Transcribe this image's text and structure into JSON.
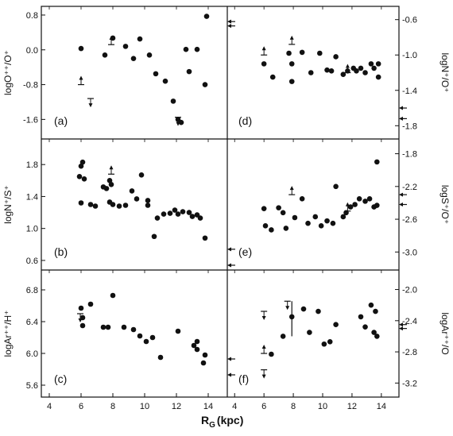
{
  "figure": {
    "x_label": "R",
    "x_label_sub": "G",
    "x_label_unit": "(kpc)",
    "x_ticks": [
      4,
      6,
      8,
      10,
      12,
      14
    ],
    "x_range": [
      3.5,
      15.2
    ],
    "markers": [
      "filled-circle",
      "lower-limit-arrow",
      "upper-limit-arrow",
      "error-bar",
      "solar-value-arrow"
    ]
  },
  "chart_data": [
    {
      "panel": "a",
      "label": "(a)",
      "side": "left",
      "type": "scatter",
      "ylabel": "logO⁺⁺/O⁺",
      "yticks": [
        "0.8",
        "0.0",
        "-0.8",
        "-1.6"
      ],
      "ytick_values": [
        0.8,
        0.0,
        -0.8,
        -1.6
      ],
      "ylim": [
        -2.05,
        1.0
      ],
      "points": [
        [
          6.0,
          0.03
        ],
        [
          7.5,
          -0.12
        ],
        [
          8.0,
          0.27
        ],
        [
          8.8,
          0.08
        ],
        [
          9.3,
          -0.2
        ],
        [
          9.7,
          0.25
        ],
        [
          10.3,
          -0.12
        ],
        [
          10.7,
          -0.55
        ],
        [
          11.3,
          -0.72
        ],
        [
          11.8,
          -1.18
        ],
        [
          12.1,
          -1.6
        ],
        [
          12.3,
          -1.67
        ],
        [
          12.6,
          0.01
        ],
        [
          12.8,
          -0.5
        ],
        [
          13.3,
          0.01
        ],
        [
          13.8,
          -0.8
        ],
        [
          13.9,
          0.77
        ]
      ],
      "lower_limits": [
        [
          6.0,
          -0.8
        ],
        [
          7.9,
          0.12
        ]
      ],
      "upper_limits": [
        [
          6.6,
          -1.12
        ],
        [
          12.1,
          -1.55
        ]
      ],
      "error_bars": [],
      "solar_arrows": [
        0.65,
        0.55
      ]
    },
    {
      "panel": "d",
      "label": "(d)",
      "side": "right",
      "type": "scatter",
      "ylabel": "logN⁺/O⁺",
      "yticks": [
        "-0.6",
        "-1.0",
        "-1.4",
        "-1.8"
      ],
      "ytick_values": [
        -0.6,
        -1.0,
        -1.4,
        -1.8
      ],
      "ylim": [
        -1.95,
        -0.45
      ],
      "points": [
        [
          6.0,
          -1.1
        ],
        [
          6.6,
          -1.25
        ],
        [
          7.7,
          -0.98
        ],
        [
          7.9,
          -1.1
        ],
        [
          7.9,
          -1.3
        ],
        [
          8.6,
          -0.97
        ],
        [
          9.2,
          -1.2
        ],
        [
          9.8,
          -0.98
        ],
        [
          10.3,
          -1.17
        ],
        [
          10.6,
          -1.18
        ],
        [
          10.9,
          -1.02
        ],
        [
          11.4,
          -1.22
        ],
        [
          11.7,
          -1.18
        ],
        [
          12.1,
          -1.15
        ],
        [
          12.3,
          -1.18
        ],
        [
          12.6,
          -1.15
        ],
        [
          12.9,
          -1.2
        ],
        [
          13.3,
          -1.1
        ],
        [
          13.5,
          -1.15
        ],
        [
          13.8,
          -1.25
        ],
        [
          13.8,
          -1.1
        ]
      ],
      "lower_limits": [
        [
          6.0,
          -1.0
        ],
        [
          7.9,
          -0.88
        ],
        [
          11.7,
          -1.2
        ]
      ],
      "upper_limits": [],
      "error_bars": [],
      "solar_arrows": [
        -1.6,
        -1.72
      ]
    },
    {
      "panel": "b",
      "label": "(b)",
      "side": "left",
      "type": "scatter",
      "ylabel": "logN⁺/S⁺",
      "yticks": [
        "1.8",
        "1.4",
        "1.0",
        "0.6"
      ],
      "ytick_values": [
        1.8,
        1.4,
        1.0,
        0.6
      ],
      "ylim": [
        0.48,
        2.12
      ],
      "points": [
        [
          5.9,
          1.65
        ],
        [
          6.0,
          1.78
        ],
        [
          6.0,
          1.32
        ],
        [
          6.1,
          1.83
        ],
        [
          6.2,
          1.62
        ],
        [
          6.6,
          1.3
        ],
        [
          6.9,
          1.28
        ],
        [
          7.4,
          1.52
        ],
        [
          7.6,
          1.5
        ],
        [
          7.8,
          1.6
        ],
        [
          7.9,
          1.55
        ],
        [
          7.8,
          1.33
        ],
        [
          8.0,
          1.3
        ],
        [
          8.4,
          1.28
        ],
        [
          8.8,
          1.29
        ],
        [
          9.2,
          1.47
        ],
        [
          9.5,
          1.37
        ],
        [
          9.8,
          1.67
        ],
        [
          10.2,
          1.35
        ],
        [
          10.2,
          1.29
        ],
        [
          10.6,
          0.9
        ],
        [
          10.8,
          1.13
        ],
        [
          11.2,
          1.18
        ],
        [
          11.6,
          1.19
        ],
        [
          11.9,
          1.23
        ],
        [
          12.1,
          1.18
        ],
        [
          12.4,
          1.21
        ],
        [
          12.8,
          1.2
        ],
        [
          13.0,
          1.15
        ],
        [
          13.3,
          1.17
        ],
        [
          13.5,
          1.13
        ],
        [
          13.8,
          0.88
        ]
      ],
      "lower_limits": [
        [
          7.9,
          1.68
        ]
      ],
      "upper_limits": [],
      "error_bars": [],
      "solar_arrows": [
        0.74,
        0.54
      ]
    },
    {
      "panel": "e",
      "label": "(e)",
      "side": "right",
      "type": "scatter",
      "ylabel": "logS⁺/O⁺",
      "yticks": [
        "-1.8",
        "-2.2",
        "-2.6",
        "-3.0"
      ],
      "ytick_values": [
        -1.8,
        -2.2,
        -2.6,
        -3.0
      ],
      "ylim": [
        -3.22,
        -1.62
      ],
      "points": [
        [
          6.0,
          -2.47
        ],
        [
          6.1,
          -2.68
        ],
        [
          6.5,
          -2.73
        ],
        [
          7.0,
          -2.46
        ],
        [
          7.3,
          -2.52
        ],
        [
          7.5,
          -2.71
        ],
        [
          8.1,
          -2.58
        ],
        [
          8.6,
          -2.35
        ],
        [
          9.0,
          -2.65
        ],
        [
          9.5,
          -2.57
        ],
        [
          9.9,
          -2.68
        ],
        [
          10.3,
          -2.62
        ],
        [
          10.7,
          -2.65
        ],
        [
          10.9,
          -2.2
        ],
        [
          11.4,
          -2.57
        ],
        [
          11.6,
          -2.52
        ],
        [
          11.9,
          -2.45
        ],
        [
          12.2,
          -2.42
        ],
        [
          12.5,
          -2.35
        ],
        [
          12.9,
          -2.38
        ],
        [
          13.2,
          -2.35
        ],
        [
          13.5,
          -2.45
        ],
        [
          13.7,
          -1.9
        ],
        [
          13.7,
          -2.43
        ]
      ],
      "lower_limits": [
        [
          7.9,
          -2.3
        ],
        [
          11.7,
          -2.5
        ]
      ],
      "upper_limits": [],
      "error_bars": [],
      "solar_arrows": [
        -2.3,
        -2.42
      ]
    },
    {
      "panel": "c",
      "label": "(c)",
      "side": "left",
      "type": "scatter",
      "ylabel": "logAr⁺⁺/H⁺",
      "yticks": [
        "6.8",
        "6.4",
        "6.0",
        "5.6"
      ],
      "ytick_values": [
        6.8,
        6.4,
        6.0,
        5.6
      ],
      "ylim": [
        5.45,
        7.05
      ],
      "points": [
        [
          6.0,
          6.57
        ],
        [
          6.1,
          6.45
        ],
        [
          6.1,
          6.35
        ],
        [
          6.6,
          6.62
        ],
        [
          7.4,
          6.33
        ],
        [
          7.7,
          6.33
        ],
        [
          8.0,
          6.73
        ],
        [
          8.7,
          6.33
        ],
        [
          9.3,
          6.3
        ],
        [
          9.7,
          6.22
        ],
        [
          10.1,
          6.15
        ],
        [
          10.5,
          6.2
        ],
        [
          11.0,
          5.95
        ],
        [
          12.1,
          6.28
        ],
        [
          13.1,
          6.1
        ],
        [
          13.3,
          6.15
        ],
        [
          13.3,
          6.05
        ],
        [
          13.7,
          5.88
        ],
        [
          13.8,
          5.98
        ]
      ],
      "lower_limits": [],
      "upper_limits": [
        [
          5.95,
          6.5
        ]
      ],
      "error_bars": [],
      "solar_arrows": [
        5.93,
        5.73
      ]
    },
    {
      "panel": "f",
      "label": "(f)",
      "side": "right",
      "type": "scatter",
      "ylabel": "logAr⁺⁺/O",
      "yticks": [
        "-2.0",
        "-2.4",
        "-2.8",
        "-3.2"
      ],
      "ytick_values": [
        -2.0,
        -2.4,
        -2.8,
        -3.2
      ],
      "ylim": [
        -3.38,
        -1.75
      ],
      "points": [
        [
          6.5,
          -2.83
        ],
        [
          7.3,
          -2.6
        ],
        [
          7.9,
          -2.35
        ],
        [
          8.7,
          -2.25
        ],
        [
          9.1,
          -2.55
        ],
        [
          9.7,
          -2.28
        ],
        [
          10.1,
          -2.7
        ],
        [
          10.5,
          -2.67
        ],
        [
          10.9,
          -2.45
        ],
        [
          12.6,
          -2.35
        ],
        [
          12.9,
          -2.48
        ],
        [
          13.3,
          -2.2
        ],
        [
          13.5,
          -2.55
        ],
        [
          13.6,
          -2.28
        ],
        [
          13.7,
          -2.6
        ]
      ],
      "lower_limits": [
        [
          6.0,
          -2.82
        ]
      ],
      "upper_limits": [
        [
          6.0,
          -2.28
        ],
        [
          7.6,
          -2.15
        ],
        [
          6.0,
          -3.03
        ]
      ],
      "error_bars": [
        [
          7.9,
          -2.15,
          -2.6
        ]
      ],
      "solar_arrows": [
        -2.45,
        -2.5
      ]
    }
  ]
}
